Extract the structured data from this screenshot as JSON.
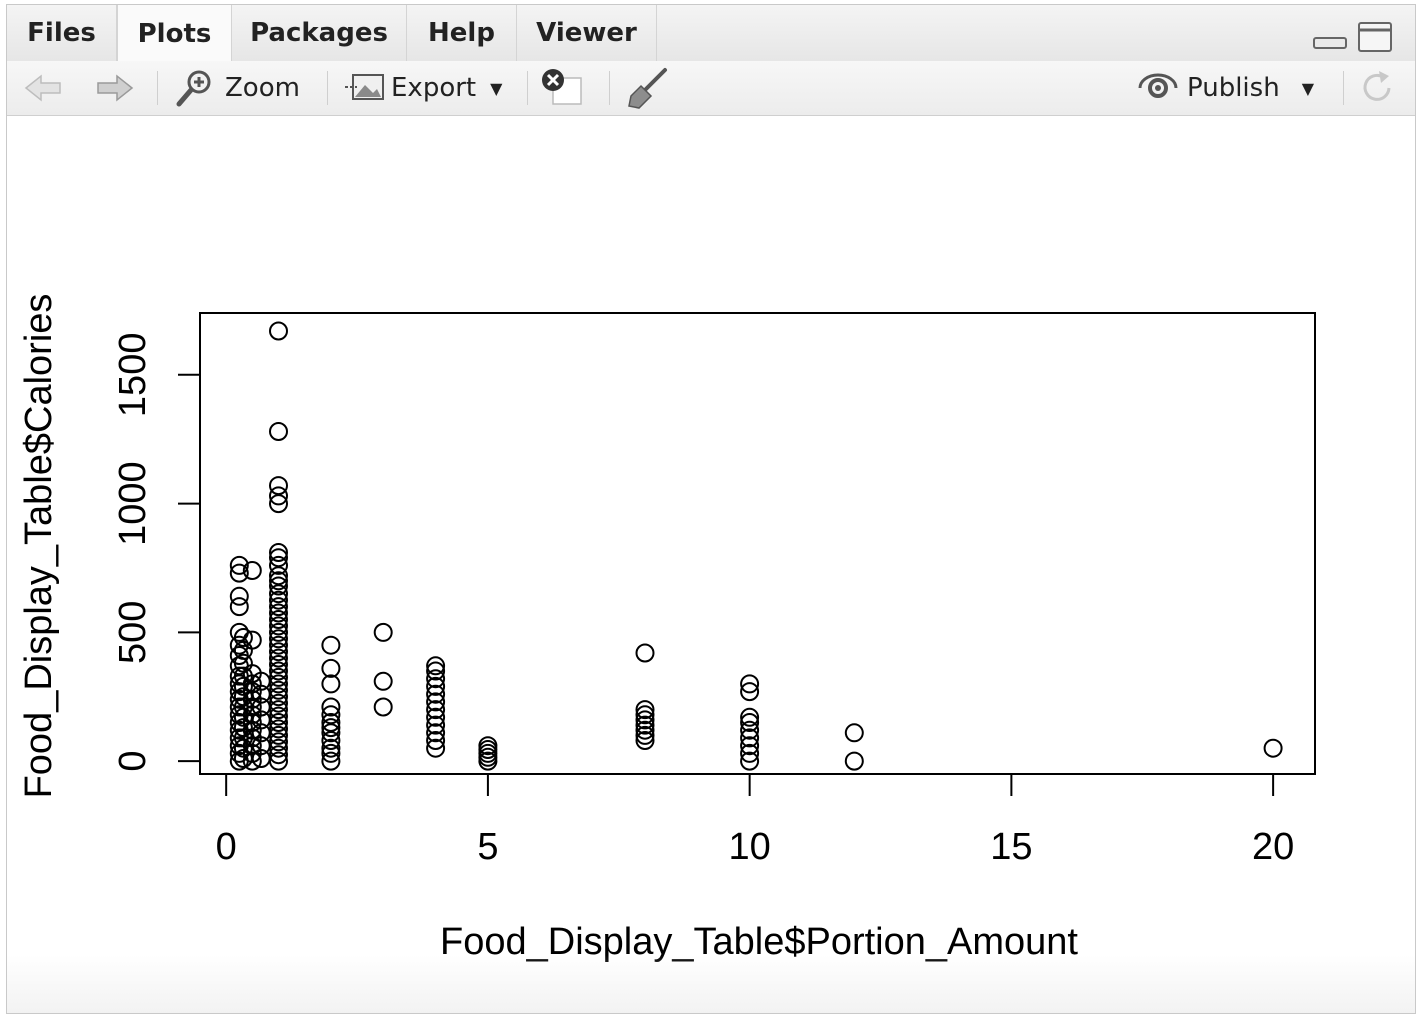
{
  "tabs": [
    {
      "label": "Files"
    },
    {
      "label": "Plots"
    },
    {
      "label": "Packages"
    },
    {
      "label": "Help"
    },
    {
      "label": "Viewer"
    }
  ],
  "toolbar": {
    "zoom_label": "Zoom",
    "export_label": "Export",
    "publish_label": "Publish"
  },
  "chart_data": {
    "type": "scatter",
    "xlabel": "Food_Display_Table$Portion_Amount",
    "ylabel": "Food_Display_Table$Calories",
    "xlim": [
      -0.5,
      20.8
    ],
    "ylim": [
      -50,
      1740
    ],
    "xticks": [
      0,
      5,
      10,
      15,
      20
    ],
    "xtick_labels": [
      "0",
      "5",
      "10",
      "15",
      "20"
    ],
    "yticks": [
      0,
      500,
      1000,
      1500
    ],
    "ytick_labels": [
      "0",
      "500",
      "1000",
      "1500"
    ],
    "marker": "open-circle",
    "grid": false,
    "points": [
      [
        0.25,
        0
      ],
      [
        0.25,
        30
      ],
      [
        0.25,
        60
      ],
      [
        0.25,
        90
      ],
      [
        0.25,
        120
      ],
      [
        0.25,
        150
      ],
      [
        0.25,
        180
      ],
      [
        0.25,
        210
      ],
      [
        0.25,
        240
      ],
      [
        0.25,
        270
      ],
      [
        0.25,
        300
      ],
      [
        0.25,
        330
      ],
      [
        0.25,
        370
      ],
      [
        0.25,
        410
      ],
      [
        0.25,
        450
      ],
      [
        0.25,
        500
      ],
      [
        0.25,
        600
      ],
      [
        0.25,
        640
      ],
      [
        0.25,
        730
      ],
      [
        0.25,
        760
      ],
      [
        0.33,
        10
      ],
      [
        0.33,
        50
      ],
      [
        0.33,
        90
      ],
      [
        0.33,
        130
      ],
      [
        0.33,
        170
      ],
      [
        0.33,
        210
      ],
      [
        0.33,
        250
      ],
      [
        0.33,
        290
      ],
      [
        0.33,
        330
      ],
      [
        0.33,
        380
      ],
      [
        0.33,
        430
      ],
      [
        0.33,
        480
      ],
      [
        0.5,
        0
      ],
      [
        0.5,
        30
      ],
      [
        0.5,
        60
      ],
      [
        0.5,
        90
      ],
      [
        0.5,
        120
      ],
      [
        0.5,
        150
      ],
      [
        0.5,
        180
      ],
      [
        0.5,
        210
      ],
      [
        0.5,
        240
      ],
      [
        0.5,
        270
      ],
      [
        0.5,
        300
      ],
      [
        0.5,
        340
      ],
      [
        0.5,
        470
      ],
      [
        0.5,
        740
      ],
      [
        0.67,
        10
      ],
      [
        0.67,
        60
      ],
      [
        0.67,
        110
      ],
      [
        0.67,
        160
      ],
      [
        0.67,
        210
      ],
      [
        0.67,
        260
      ],
      [
        0.67,
        310
      ],
      [
        1,
        0
      ],
      [
        1,
        25
      ],
      [
        1,
        50
      ],
      [
        1,
        75
      ],
      [
        1,
        100
      ],
      [
        1,
        125
      ],
      [
        1,
        150
      ],
      [
        1,
        175
      ],
      [
        1,
        200
      ],
      [
        1,
        225
      ],
      [
        1,
        250
      ],
      [
        1,
        275
      ],
      [
        1,
        300
      ],
      [
        1,
        325
      ],
      [
        1,
        350
      ],
      [
        1,
        375
      ],
      [
        1,
        400
      ],
      [
        1,
        425
      ],
      [
        1,
        450
      ],
      [
        1,
        475
      ],
      [
        1,
        500
      ],
      [
        1,
        525
      ],
      [
        1,
        550
      ],
      [
        1,
        575
      ],
      [
        1,
        600
      ],
      [
        1,
        625
      ],
      [
        1,
        650
      ],
      [
        1,
        680
      ],
      [
        1,
        700
      ],
      [
        1,
        720
      ],
      [
        1,
        760
      ],
      [
        1,
        790
      ],
      [
        1,
        810
      ],
      [
        1,
        1000
      ],
      [
        1,
        1030
      ],
      [
        1,
        1070
      ],
      [
        1,
        1280
      ],
      [
        1,
        1670
      ],
      [
        2,
        0
      ],
      [
        2,
        30
      ],
      [
        2,
        50
      ],
      [
        2,
        80
      ],
      [
        2,
        110
      ],
      [
        2,
        130
      ],
      [
        2,
        150
      ],
      [
        2,
        180
      ],
      [
        2,
        210
      ],
      [
        2,
        300
      ],
      [
        2,
        360
      ],
      [
        2,
        450
      ],
      [
        3,
        210
      ],
      [
        3,
        310
      ],
      [
        3,
        500
      ],
      [
        4,
        50
      ],
      [
        4,
        80
      ],
      [
        4,
        110
      ],
      [
        4,
        140
      ],
      [
        4,
        170
      ],
      [
        4,
        200
      ],
      [
        4,
        230
      ],
      [
        4,
        260
      ],
      [
        4,
        290
      ],
      [
        4,
        320
      ],
      [
        4,
        350
      ],
      [
        4,
        370
      ],
      [
        5,
        0
      ],
      [
        5,
        15
      ],
      [
        5,
        30
      ],
      [
        5,
        45
      ],
      [
        5,
        60
      ],
      [
        8,
        80
      ],
      [
        8,
        100
      ],
      [
        8,
        120
      ],
      [
        8,
        140
      ],
      [
        8,
        160
      ],
      [
        8,
        180
      ],
      [
        8,
        200
      ],
      [
        8,
        420
      ],
      [
        10,
        0
      ],
      [
        10,
        30
      ],
      [
        10,
        60
      ],
      [
        10,
        90
      ],
      [
        10,
        120
      ],
      [
        10,
        150
      ],
      [
        10,
        170
      ],
      [
        10,
        270
      ],
      [
        10,
        300
      ],
      [
        12,
        0
      ],
      [
        12,
        110
      ],
      [
        20,
        50
      ]
    ]
  }
}
